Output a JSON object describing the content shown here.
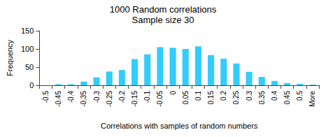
{
  "chart_data": {
    "type": "bar",
    "title": "1000 Random correlations",
    "subtitle": "Sample size 30",
    "x_label": "Correlations with samples of random numbers",
    "y_label": "Frequency",
    "categories": [
      "-0.5",
      "-0.45",
      "-0.4",
      "-0.35",
      "-0.3",
      "-0.25",
      "-0.2",
      "-0.15",
      "-0.1",
      "-0.05",
      "0",
      "0.05",
      "0.1",
      "0.15",
      "0.2",
      "0.25",
      "0.3",
      "0.35",
      "0.4",
      "0.45",
      "0.5",
      "More"
    ],
    "values": [
      0,
      3,
      3,
      10,
      22,
      38,
      42,
      72,
      85,
      105,
      103,
      100,
      107,
      83,
      73,
      60,
      37,
      23,
      12,
      6,
      4,
      2
    ],
    "color": "#33ccff",
    "ylim": [
      0,
      150
    ],
    "yticks": [
      0,
      50,
      100,
      150
    ],
    "grid": false
  }
}
